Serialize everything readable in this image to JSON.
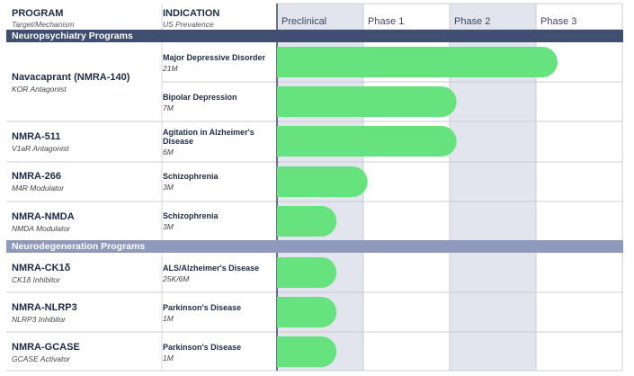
{
  "headers": {
    "program": "PROGRAM",
    "program_sub": "Target/Mechanism",
    "indication": "INDICATION",
    "indication_sub": "US Prevalence"
  },
  "colors": {
    "bar": "#66e27e",
    "section_1": "#404e72",
    "section_2": "#8e99bb",
    "phase_shade": "#e3e5ee"
  },
  "chart_data": {
    "type": "bar",
    "orientation": "horizontal",
    "phases": [
      "Preclinical",
      "Phase 1",
      "Phase 2",
      "Phase 3"
    ],
    "sections": [
      {
        "title": "Neuropsychiatry Programs",
        "rows": [
          {
            "program": "Navacaprant (NMRA-140)",
            "mechanism": "KOR Antagonist",
            "indication": "Major Depressive Disorder",
            "prevalence": "21M",
            "progress": 3.25
          },
          {
            "program": "",
            "mechanism": "",
            "indication": "Bipolar Depression",
            "prevalence": "7M",
            "progress": 2.08
          },
          {
            "program": "NMRA-511",
            "mechanism": "V1aR Antagonist",
            "indication": "Agitation in Alzheimer's Disease",
            "prevalence": "6M",
            "progress": 2.08
          },
          {
            "program": "NMRA-266",
            "mechanism": "M4R Modulator",
            "indication": "Schizophrenia",
            "prevalence": "3M",
            "progress": 1.05
          },
          {
            "program": "NMRA-NMDA",
            "mechanism": "NMDA Modulator",
            "indication": "Schizophrenia",
            "prevalence": "3M",
            "progress": 0.69
          }
        ]
      },
      {
        "title": "Neurodegeneration Programs",
        "rows": [
          {
            "program": "NMRA-CK1δ",
            "mechanism": "CK1δ Inhibitor",
            "indication": "ALS/Alzheimer's Disease",
            "prevalence": "25K/6M",
            "progress": 0.69
          },
          {
            "program": "NMRA-NLRP3",
            "mechanism": "NLRP3 Inhibitor",
            "indication": "Parkinson's Disease",
            "prevalence": "1M",
            "progress": 0.69
          },
          {
            "program": "NMRA-GCASE",
            "mechanism": "GCASE Activator",
            "indication": "Parkinson's Disease",
            "prevalence": "1M",
            "progress": 0.69
          }
        ]
      }
    ]
  }
}
